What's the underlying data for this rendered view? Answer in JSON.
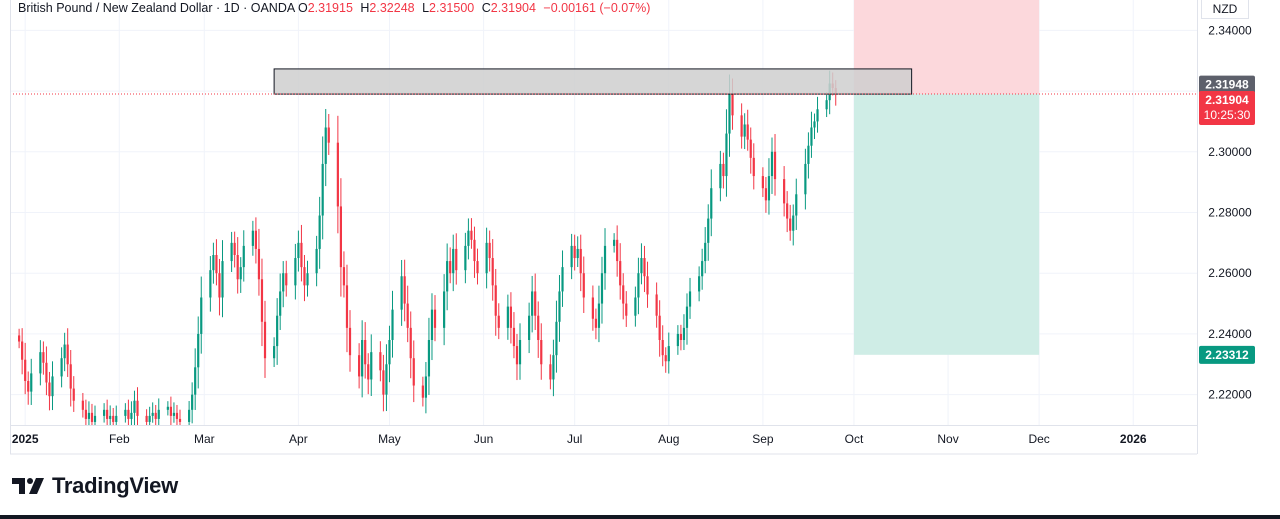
{
  "header": {
    "symbol": "British Pound / New Zealand Dollar · 1D · OANDA",
    "open": "2.31915",
    "high": "2.32248",
    "low": "2.31500",
    "close": "2.31904",
    "change": "−0.00161 (−0.07%)",
    "labels": {
      "o": "O",
      "h": "H",
      "l": "L",
      "c": "C"
    }
  },
  "currency": "NZD",
  "logo": "TradingView",
  "colors": {
    "up": "#089981",
    "down": "#f23645",
    "stop_zone": "#fcd8dc",
    "target_zone": "#cfede6",
    "resistance_box": "#cfcfcf",
    "price_tag": "#f23645",
    "target_tag": "#089981",
    "level_tag": "#5d606b"
  },
  "chart_data": {
    "type": "candlestick",
    "ylim": [
      2.21,
      2.35
    ],
    "y_ticks": [
      "2.34000",
      "2.30000",
      "2.28000",
      "2.26000",
      "2.24000",
      "2.22000"
    ],
    "x_tick_labels": [
      "2025",
      "Feb",
      "Mar",
      "Apr",
      "May",
      "Jun",
      "Jul",
      "Aug",
      "Sep",
      "Oct",
      "Nov",
      "Dec",
      "2026"
    ],
    "x_range": [
      "2024-12-27",
      "2026-01-22"
    ],
    "price_tags": {
      "level": "2.31948",
      "last": "2.31904",
      "countdown": "10:25:30",
      "target": "2.23312"
    },
    "resistance_zone": {
      "from": "2025-03-24",
      "to": "2025-10-20",
      "low": 2.319,
      "high": 2.3273
    },
    "position": {
      "entry_date": "2025-10-01",
      "exit_date": "2025-12-01",
      "entry": 2.319,
      "stop": 2.35,
      "target": 2.23312
    },
    "closes": [
      2.2375,
      2.2315,
      2.2245,
      2.221,
      2.227,
      2.234,
      2.2305,
      2.224,
      2.2195,
      2.226,
      2.232,
      2.2365,
      2.23,
      2.222,
      2.218,
      2.215,
      2.212,
      2.214,
      2.211,
      2.213,
      2.215,
      2.212,
      2.213,
      2.211,
      2.213,
      2.215,
      2.212,
      2.214,
      2.218,
      2.213,
      2.211,
      2.213,
      2.214,
      2.212,
      2.215,
      2.216,
      2.213,
      2.214,
      2.212,
      2.211,
      2.215,
      2.22,
      2.229,
      2.24,
      2.252,
      2.261,
      2.266,
      2.26,
      2.252,
      2.264,
      2.27,
      2.266,
      2.258,
      2.262,
      2.269,
      2.274,
      2.268,
      2.258,
      2.244,
      2.232,
      2.236,
      2.246,
      2.254,
      2.26,
      2.256,
      2.265,
      2.27,
      2.262,
      2.256,
      2.26,
      2.268,
      2.279,
      2.296,
      2.308,
      2.303,
      2.282,
      2.262,
      2.256,
      2.242,
      2.233,
      2.226,
      2.238,
      2.23,
      2.225,
      2.234,
      2.228,
      2.22,
      2.23,
      2.238,
      2.248,
      2.259,
      2.25,
      2.242,
      2.232,
      2.223,
      2.219,
      2.226,
      2.238,
      2.248,
      2.242,
      2.254,
      2.264,
      2.26,
      2.268,
      2.261,
      2.269,
      2.274,
      2.271,
      2.264,
      2.26,
      2.27,
      2.265,
      2.256,
      2.246,
      2.242,
      2.249,
      2.242,
      2.236,
      2.23,
      2.238,
      2.246,
      2.254,
      2.246,
      2.238,
      2.23,
      2.225,
      2.233,
      2.244,
      2.254,
      2.262,
      2.269,
      2.265,
      2.268,
      2.26,
      2.252,
      2.245,
      2.242,
      2.25,
      2.26,
      2.269,
      2.271,
      2.264,
      2.256,
      2.25,
      2.246,
      2.252,
      2.26,
      2.265,
      2.259,
      2.253,
      2.246,
      2.238,
      2.233,
      2.231,
      2.236,
      2.24,
      2.238,
      2.242,
      2.249,
      2.254,
      2.259,
      2.264,
      2.27,
      2.278,
      2.288,
      2.296,
      2.292,
      2.306,
      2.319,
      2.312,
      2.305,
      2.309,
      2.304,
      2.298,
      2.292,
      2.288,
      2.284,
      2.292,
      2.3,
      2.291,
      2.283,
      2.278,
      2.274,
      2.279,
      2.286,
      2.296,
      2.302,
      2.308,
      2.31,
      2.314,
      2.317,
      2.3225,
      2.321,
      2.319
    ]
  }
}
